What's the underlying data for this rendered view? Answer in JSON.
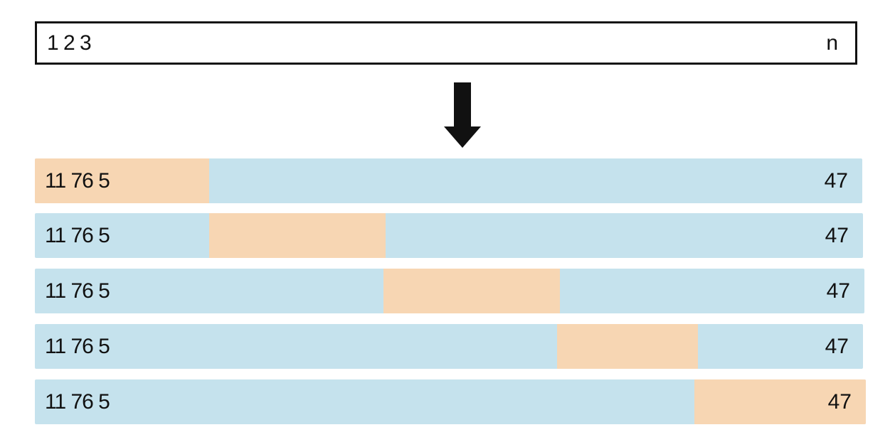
{
  "source": {
    "start_label": "1 2 3",
    "end_label": "n"
  },
  "arrow": {
    "icon": "down-arrow-icon",
    "color": "#111111"
  },
  "colors": {
    "row_background": "#c5e2ed",
    "highlight_segment": "#f7d6b3",
    "outline": "#111111"
  },
  "rows": [
    {
      "start_label": "11 76 5",
      "end_label": "47",
      "highlight_index": 1
    },
    {
      "start_label": "11 76 5",
      "end_label": "47",
      "highlight_index": 2
    },
    {
      "start_label": "11 76 5",
      "end_label": "47",
      "highlight_index": 3
    },
    {
      "start_label": "11 76 5",
      "end_label": "47",
      "highlight_index": 4
    },
    {
      "start_label": "11 76 5",
      "end_label": "47",
      "highlight_index": 5
    }
  ]
}
